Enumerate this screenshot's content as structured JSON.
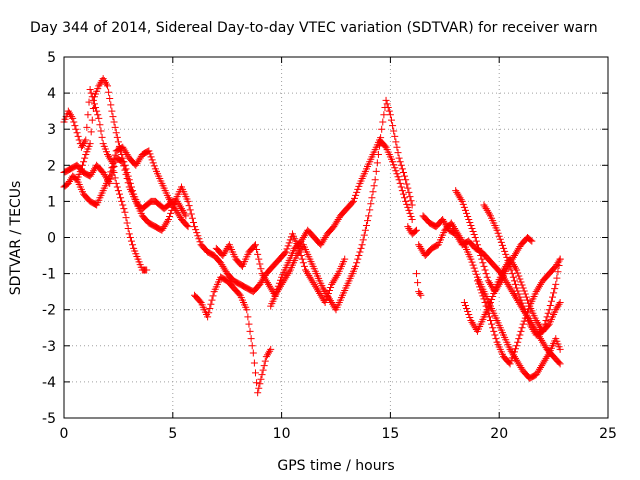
{
  "chart_data": {
    "type": "scatter",
    "title": "Day 344 of 2014, Sidereal Day-to-day VTEC variation (SDTVAR) for receiver warn",
    "xlabel": "GPS time / hours",
    "ylabel": "SDTVAR / TECUs",
    "xlim": [
      0,
      25
    ],
    "ylim": [
      -5,
      5
    ],
    "xticks": [
      0,
      5,
      10,
      15,
      20,
      25
    ],
    "yticks": [
      -5,
      -4,
      -3,
      -2,
      -1,
      0,
      1,
      2,
      3,
      4,
      5
    ],
    "grid": true,
    "legend": "none",
    "marker": "+",
    "color": "#ff0000",
    "series": [
      {
        "name": "s1",
        "x": [
          0.0,
          0.2,
          0.4,
          0.6,
          0.8,
          1.0,
          1.2,
          1.4,
          1.6,
          1.8,
          2.0,
          2.2,
          2.4,
          2.6,
          2.8,
          3.0,
          3.2,
          3.4,
          3.6,
          3.8
        ],
        "y": [
          3.2,
          3.5,
          3.3,
          2.9,
          2.5,
          2.7,
          4.1,
          3.7,
          3.3,
          2.6,
          2.3,
          2.1,
          1.5,
          1.1,
          0.7,
          0.1,
          -0.3,
          -0.6,
          -0.9,
          -0.9
        ]
      },
      {
        "name": "s2",
        "x": [
          0.0,
          0.2,
          0.4,
          0.6,
          0.8,
          1.0,
          1.2,
          1.4,
          1.6,
          1.8,
          2.0,
          2.2,
          2.4,
          2.6,
          2.8,
          3.0,
          3.2,
          3.4,
          3.6,
          3.8,
          4.0,
          4.2,
          4.4,
          4.6,
          4.8,
          5.0,
          5.2,
          5.4,
          5.6
        ],
        "y": [
          1.4,
          1.5,
          1.7,
          1.6,
          1.9,
          2.3,
          2.6,
          3.9,
          4.2,
          4.4,
          4.2,
          3.5,
          2.9,
          2.4,
          2.0,
          1.6,
          1.2,
          0.9,
          0.8,
          0.9,
          1.0,
          1.0,
          0.9,
          0.8,
          0.9,
          1.0,
          1.0,
          0.8,
          0.6
        ]
      },
      {
        "name": "s3",
        "x": [
          0.0,
          0.3,
          0.6,
          0.9,
          1.2,
          1.5,
          1.8,
          2.1,
          2.4,
          2.7,
          3.0,
          3.3,
          3.6,
          3.9,
          4.2,
          4.5,
          4.8,
          5.1,
          5.4,
          5.7,
          6.0,
          6.3,
          6.6,
          6.9,
          7.2,
          7.5,
          7.8,
          8.1,
          8.4,
          8.7,
          9.0,
          9.3,
          9.6,
          9.9,
          10.2,
          10.5,
          10.8,
          11.1,
          11.4,
          11.7,
          12.0,
          12.3,
          12.6,
          12.9
        ],
        "y": [
          1.8,
          1.9,
          2.0,
          1.8,
          1.7,
          2.0,
          1.8,
          1.5,
          2.2,
          2.1,
          1.4,
          1.0,
          0.6,
          0.4,
          0.3,
          0.2,
          0.5,
          1.0,
          1.4,
          1.0,
          0.3,
          -0.2,
          -0.4,
          -0.5,
          -0.7,
          -1.0,
          -1.2,
          -1.3,
          -1.4,
          -1.5,
          -1.3,
          -1.0,
          -0.8,
          -0.6,
          -0.4,
          0.1,
          -0.3,
          -0.9,
          -1.2,
          -1.5,
          -1.8,
          -1.3,
          -1.0,
          -0.6
        ]
      },
      {
        "name": "s4",
        "x": [
          0.6,
          0.9,
          1.2,
          1.5,
          1.8,
          2.1,
          2.4,
          2.7,
          3.0,
          3.3,
          3.6,
          3.9,
          4.2,
          4.5,
          4.8,
          5.1,
          5.4,
          5.7
        ],
        "y": [
          1.6,
          1.2,
          1.0,
          0.9,
          1.3,
          1.7,
          2.4,
          2.5,
          2.2,
          2.0,
          2.3,
          2.4,
          1.9,
          1.5,
          1.1,
          0.8,
          0.5,
          0.3
        ]
      },
      {
        "name": "s5",
        "x": [
          6.0,
          6.3,
          6.6,
          6.9,
          7.2,
          7.5,
          7.8,
          8.1,
          8.4,
          8.7,
          8.9,
          9.1,
          9.3,
          9.5
        ],
        "y": [
          -1.6,
          -1.8,
          -2.2,
          -1.5,
          -1.1,
          -1.2,
          -1.4,
          -1.6,
          -2.0,
          -3.2,
          -4.3,
          -3.8,
          -3.3,
          -3.1
        ]
      },
      {
        "name": "s6",
        "x": [
          7.0,
          7.3,
          7.6,
          7.9,
          8.2,
          8.5,
          8.8,
          9.1,
          9.4,
          9.7,
          10.0,
          10.3,
          10.6,
          10.9,
          11.2,
          11.5,
          11.8,
          12.1,
          12.4,
          12.7,
          13.0,
          13.3,
          13.6,
          13.9,
          14.2,
          14.5,
          14.8,
          15.1,
          15.4,
          15.7,
          16.0
        ],
        "y": [
          -0.3,
          -0.5,
          -0.2,
          -0.6,
          -0.8,
          -0.4,
          -0.2,
          -1.0,
          -1.3,
          -1.6,
          -1.1,
          -0.7,
          -0.3,
          -0.1,
          0.2,
          0.0,
          -0.2,
          0.1,
          0.3,
          0.6,
          0.8,
          1.0,
          1.5,
          1.9,
          2.3,
          2.7,
          2.5,
          2.1,
          1.6,
          1.0,
          0.5
        ]
      },
      {
        "name": "s7",
        "x": [
          9.5,
          9.8,
          10.1,
          10.4,
          10.7,
          11.0,
          11.3,
          11.6,
          11.9,
          12.2,
          12.5,
          12.8,
          13.1,
          13.4,
          13.7,
          14.0,
          14.3,
          14.6,
          14.8,
          15.0,
          15.2,
          15.4,
          15.7,
          16.0
        ],
        "y": [
          -1.9,
          -1.5,
          -1.2,
          -0.9,
          -0.5,
          -0.2,
          -0.6,
          -1.0,
          -1.4,
          -1.7,
          -2.0,
          -1.6,
          -1.2,
          -0.8,
          -0.2,
          0.6,
          1.6,
          3.0,
          3.8,
          3.4,
          2.8,
          2.2,
          1.6,
          0.9
        ]
      },
      {
        "name": "s8",
        "x": [
          15.8,
          16.0,
          16.2
        ],
        "y": [
          0.3,
          0.1,
          0.2
        ]
      },
      {
        "name": "s9",
        "x": [
          16.2,
          16.3,
          16.4
        ],
        "y": [
          -1.0,
          -1.5,
          -1.6
        ]
      },
      {
        "name": "s10",
        "x": [
          16.3,
          16.6,
          16.9,
          17.2,
          17.5,
          17.8,
          18.1,
          18.4,
          18.7,
          19.0,
          19.3,
          19.6,
          19.9,
          20.2,
          20.5,
          20.8,
          21.1,
          21.4,
          21.7,
          22.0,
          22.3,
          22.6,
          22.8
        ],
        "y": [
          -0.2,
          -0.5,
          -0.3,
          -0.2,
          0.2,
          0.4,
          0.1,
          -0.2,
          -0.6,
          -1.1,
          -1.5,
          -1.9,
          -2.3,
          -2.7,
          -3.1,
          -3.4,
          -3.7,
          -3.9,
          -3.8,
          -3.5,
          -3.2,
          -2.8,
          -3.1
        ]
      },
      {
        "name": "s11",
        "x": [
          16.5,
          16.8,
          17.1,
          17.4,
          17.7,
          18.0,
          18.3,
          18.6,
          18.9,
          19.2,
          19.5,
          19.8,
          20.1,
          20.4,
          20.7,
          21.0,
          21.3,
          21.6,
          21.9,
          22.2,
          22.5,
          22.8
        ],
        "y": [
          0.6,
          0.4,
          0.3,
          0.5,
          0.2,
          0.1,
          -0.2,
          -0.1,
          -0.3,
          -0.4,
          -0.6,
          -0.8,
          -1.0,
          -1.3,
          -1.6,
          -1.9,
          -2.2,
          -2.5,
          -2.8,
          -3.1,
          -3.3,
          -3.5
        ]
      },
      {
        "name": "s12",
        "x": [
          18.0,
          18.3,
          18.6,
          18.9,
          19.2,
          19.5,
          19.8,
          20.1,
          20.4,
          20.7,
          21.0,
          21.3,
          21.5
        ],
        "y": [
          1.3,
          1.0,
          0.5,
          0.0,
          -0.6,
          -1.2,
          -1.5,
          -1.2,
          -0.8,
          -0.5,
          -0.2,
          0.0,
          -0.1
        ]
      },
      {
        "name": "s13",
        "x": [
          19.3,
          19.6,
          19.9,
          20.2,
          20.5,
          20.8,
          21.1,
          21.4,
          21.7,
          22.0,
          22.3,
          22.6,
          22.8
        ],
        "y": [
          0.9,
          0.6,
          0.2,
          -0.3,
          -0.8,
          -1.4,
          -1.9,
          -2.4,
          -2.7,
          -2.6,
          -2.0,
          -1.3,
          -0.6
        ]
      },
      {
        "name": "s14",
        "x": [
          18.4,
          18.7,
          19.0,
          19.3,
          19.6,
          19.9,
          20.2,
          20.5,
          20.8,
          21.1,
          21.4,
          21.7,
          22.0,
          22.3,
          22.6,
          22.8
        ],
        "y": [
          -1.8,
          -2.3,
          -2.6,
          -2.2,
          -1.8,
          -1.3,
          -0.9,
          -0.6,
          -0.9,
          -1.4,
          -1.9,
          -2.3,
          -2.6,
          -2.4,
          -2.0,
          -1.8
        ]
      },
      {
        "name": "s15",
        "x": [
          19.0,
          19.3,
          19.6,
          19.9,
          20.2,
          20.5,
          20.8,
          21.1,
          21.4,
          21.7,
          22.0,
          22.3,
          22.6,
          22.8
        ],
        "y": [
          -1.2,
          -1.7,
          -2.3,
          -2.9,
          -3.3,
          -3.5,
          -3.0,
          -2.4,
          -1.9,
          -1.5,
          -1.2,
          -1.0,
          -0.8,
          -0.6
        ]
      }
    ]
  }
}
